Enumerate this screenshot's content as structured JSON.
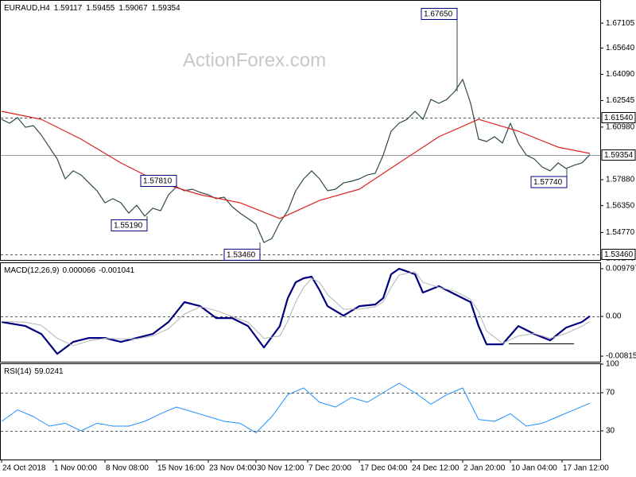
{
  "chart_data": [
    {
      "type": "line",
      "symbol": "EURAUD,H4",
      "ohlc": [
        1.59117,
        1.59455,
        1.59067,
        1.59354
      ],
      "watermark": "ActionForex.com",
      "xlim": [
        0,
        75
      ],
      "xticks": [
        {
          "value": 0,
          "label": "24 Oct 2018"
        },
        {
          "value": 6.5,
          "label": "1 Nov 00:00"
        },
        {
          "value": 13,
          "label": "8 Nov 08:00"
        },
        {
          "value": 19.5,
          "label": "15 Nov 16:00"
        },
        {
          "value": 26,
          "label": "23 Nov 04:00"
        },
        {
          "value": 32,
          "label": "30 Nov 12:00"
        },
        {
          "value": 38.5,
          "label": "7 Dec 20:00"
        },
        {
          "value": 45,
          "label": "17 Dec 04:00"
        },
        {
          "value": 51.5,
          "label": "24 Dec 12:00"
        },
        {
          "value": 58,
          "label": "2 Jan 20:00"
        },
        {
          "value": 64,
          "label": "10 Jan 04:00"
        },
        {
          "value": 70.5,
          "label": "17 Jan 12:00"
        }
      ],
      "ylim": [
        1.5315,
        1.6847
      ],
      "yticks": [
        1.67105,
        {
          "value": 1.6564,
          "label": "1.65640"
        },
        {
          "value": 1.6409,
          "label": "1.64090"
        },
        1.62545,
        {
          "value": 1.6098,
          "label": "1.60980"
        },
        {
          "value": 1.5788,
          "label": "1.57880"
        },
        {
          "value": 1.5635,
          "label": "1.56350"
        },
        {
          "value": 1.5477,
          "label": "1.54770"
        },
        1.53245
      ],
      "series": [
        {
          "color": "#2f4a4a",
          "values": [
            1.6144,
            1.6121,
            1.6154,
            1.6097,
            1.6107,
            1.6051,
            1.598,
            1.591,
            1.5793,
            1.584,
            1.5816,
            1.5769,
            1.5723,
            1.5652,
            1.5676,
            1.5652,
            1.5591,
            1.5638,
            1.5573,
            1.562,
            1.5605,
            1.5699,
            1.5746,
            1.5723,
            1.5732,
            1.5713,
            1.5699,
            1.5676,
            1.5685,
            1.5629,
            1.5591,
            1.5559,
            1.5526,
            1.5418,
            1.5442,
            1.5535,
            1.5605,
            1.5723,
            1.5793,
            1.584,
            1.5793,
            1.5723,
            1.5732,
            1.5769,
            1.5779,
            1.5793,
            1.5816,
            1.5826,
            1.5933,
            1.6074,
            1.6121,
            1.6144,
            1.6191,
            1.6144,
            1.6261,
            1.6238,
            1.6261,
            1.6308,
            1.6379,
            1.6238,
            1.6027,
            1.6013,
            1.6041,
            1.6004,
            1.6121,
            1.6004,
            1.5933,
            1.591,
            1.5863,
            1.584,
            1.5887,
            1.5854,
            1.5873,
            1.5887,
            1.59354
          ]
        },
        {
          "color": "#e02020",
          "x": [
            0,
            5,
            10,
            15,
            20,
            25,
            30,
            35,
            40,
            45,
            50,
            55,
            60,
            65,
            70,
            74
          ],
          "values": [
            1.6191,
            1.6144,
            1.6027,
            1.5887,
            1.5769,
            1.5699,
            1.5652,
            1.5559,
            1.5666,
            1.5732,
            1.5887,
            1.6041,
            1.6144,
            1.6074,
            1.598,
            1.5943
          ]
        }
      ],
      "levels": [
        {
          "value": 1.6154,
          "label": "1.61540",
          "style": "dashed"
        },
        {
          "value": 1.5346,
          "label": "1.53460",
          "style": "dashed"
        },
        {
          "value": 1.59354,
          "label": "1.59354",
          "style": "solid"
        }
      ],
      "annotations": [
        {
          "value": 1.6765,
          "label": "1.67650",
          "x": 57.3
        },
        {
          "value": 1.5781,
          "label": "1.57810",
          "x": 22
        },
        {
          "value": 1.5519,
          "label": "1.55190",
          "x": 18.3
        },
        {
          "value": 1.5346,
          "label": "1.53460",
          "x": 32.5
        },
        {
          "value": 1.5774,
          "label": "1.57740",
          "x": 71.1
        }
      ]
    },
    {
      "type": "line",
      "title": "MACD(12,26,9)",
      "readout": [
        6.6e-05,
        -0.001041
      ],
      "xlim": [
        0,
        75
      ],
      "ylim": [
        -0.00929,
        0.01094
      ],
      "yticks": [
        0.009797,
        {
          "value": 0,
          "label": "0.00"
        },
        -0.008152
      ],
      "levels": [
        0
      ],
      "series": [
        {
          "color": "#000080",
          "width": 2.2,
          "x": [
            0,
            3,
            5,
            7,
            9,
            11,
            13,
            15,
            17,
            19,
            21,
            23,
            25,
            27,
            29,
            31,
            33,
            35,
            36,
            37,
            38,
            39,
            40,
            41,
            43,
            45,
            47,
            48,
            49,
            50,
            52,
            53,
            55,
            57,
            59,
            60,
            61,
            63,
            65,
            67,
            69,
            71,
            73,
            74
          ],
          "values": [
            -0.00114,
            -0.00196,
            -0.00359,
            -0.00767,
            -0.00523,
            -0.00441,
            -0.00441,
            -0.00523,
            -0.00441,
            -0.00359,
            -0.00114,
            0.00294,
            0.00212,
            -0.00033,
            -0.00033,
            -0.00196,
            -0.00637,
            -0.00196,
            0.00376,
            0.00702,
            0.00784,
            0.00816,
            0.00539,
            0.00212,
            0.00016,
            0.00212,
            0.00245,
            0.00376,
            0.00865,
            0.0098,
            0.00865,
            0.0049,
            0.00621,
            0.00457,
            0.00294,
            -0.00196,
            -0.00572,
            -0.00572,
            -0.00196,
            -0.00359,
            -0.0049,
            -0.00229,
            -0.00114,
            6.6e-05
          ]
        },
        {
          "color": "#b4b4b4",
          "width": 1,
          "x": [
            0,
            3,
            5,
            7,
            9,
            11,
            13,
            15,
            17,
            19,
            21,
            23,
            25,
            27,
            29,
            31,
            33,
            35,
            36,
            37,
            38,
            39,
            40,
            41,
            43,
            45,
            47,
            48,
            49,
            50,
            52,
            53,
            55,
            57,
            59,
            60,
            61,
            63,
            65,
            67,
            69,
            71,
            73,
            74
          ],
          "values": [
            -0.001,
            -0.0012,
            -0.0018,
            -0.0045,
            -0.006,
            -0.005,
            -0.0045,
            -0.0046,
            -0.0046,
            -0.004,
            -0.0025,
            0.0005,
            0.002,
            0.0012,
            0,
            -0.0012,
            -0.0045,
            -0.004,
            -0.001,
            0.003,
            0.006,
            0.0078,
            0.007,
            0.0045,
            0.0015,
            0.0015,
            0.002,
            0.003,
            0.006,
            0.0085,
            0.0092,
            0.007,
            0.006,
            0.0052,
            0.0035,
            0.001,
            -0.003,
            -0.0055,
            -0.004,
            -0.0035,
            -0.0045,
            -0.0035,
            -0.002,
            -0.001041
          ]
        }
      ]
    },
    {
      "type": "line",
      "title": "RSI(14)",
      "readout": [
        59.0241
      ],
      "xlim": [
        0,
        75
      ],
      "ylim": [
        0,
        100
      ],
      "yticks": [
        100,
        70,
        30
      ],
      "levels": [
        70,
        30
      ],
      "series": [
        {
          "color": "#1e90ff",
          "width": 1,
          "x": [
            0,
            2,
            4,
            6,
            8,
            10,
            12,
            14,
            16,
            18,
            20,
            22,
            24,
            26,
            28,
            30,
            32,
            34,
            36,
            38,
            40,
            42,
            44,
            46,
            48,
            50,
            52,
            54,
            56,
            58,
            60,
            62,
            64,
            66,
            68,
            70,
            72,
            74
          ],
          "values": [
            40,
            52,
            45,
            35,
            38,
            30,
            38,
            35,
            35,
            40,
            48,
            55,
            50,
            45,
            40,
            38,
            28,
            45,
            68,
            75,
            60,
            55,
            65,
            60,
            70,
            80,
            70,
            58,
            68,
            75,
            42,
            40,
            48,
            35,
            38,
            45,
            52,
            59.0241
          ]
        }
      ]
    }
  ]
}
